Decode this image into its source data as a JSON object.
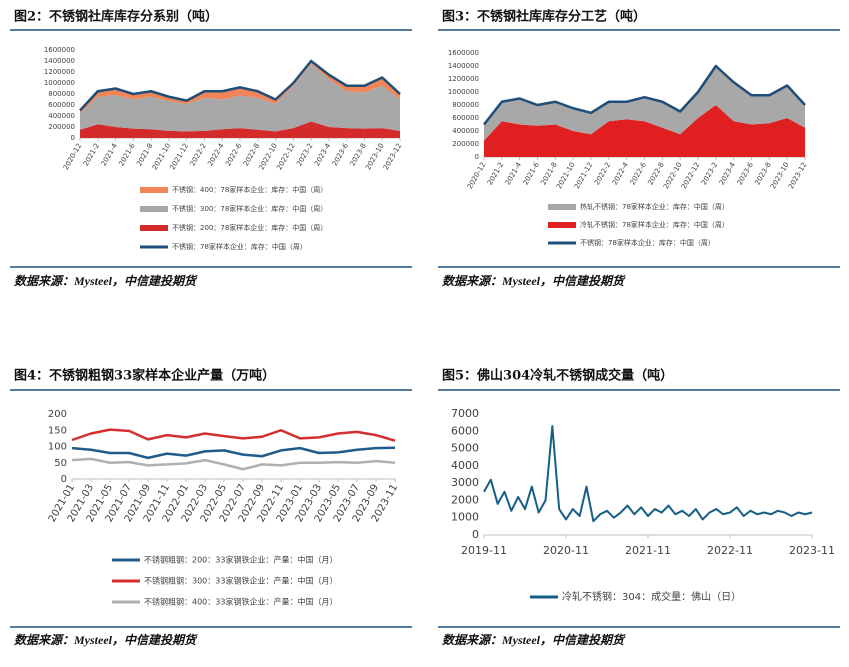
{
  "chart_data": [
    {
      "type": "area",
      "stacked": true,
      "title": "图2：不锈钢社库库存分系别（吨）",
      "source": "数据来源：Mysteel，中信建投期货",
      "categories": [
        "2020-12",
        "2021-2",
        "2021-4",
        "2021-6",
        "2021-8",
        "2021-10",
        "2021-12",
        "2022-2",
        "2022-4",
        "2022-6",
        "2022-8",
        "2022-10",
        "2022-12",
        "2023-2",
        "2023-4",
        "2023-6",
        "2023-8",
        "2023-10",
        "2023-12"
      ],
      "ylim": [
        0,
        1600000
      ],
      "yticks": [
        0,
        200000,
        400000,
        600000,
        800000,
        1000000,
        1200000,
        1400000,
        1600000
      ],
      "series": [
        {
          "name": "不锈钢：400：78家样本企业：库存：中国（周）",
          "type": "area",
          "color": "#f0855a",
          "values": [
            50000,
            100000,
            120000,
            100000,
            100000,
            80000,
            60000,
            120000,
            150000,
            150000,
            120000,
            80000,
            50000,
            50000,
            80000,
            100000,
            120000,
            150000,
            100000
          ]
        },
        {
          "name": "不锈钢：300：78家样本企业：库存：中国（周）",
          "type": "area",
          "color": "#a8a8a8",
          "values": [
            300000,
            500000,
            580000,
            530000,
            590000,
            540000,
            500000,
            600000,
            540000,
            590000,
            580000,
            500000,
            770000,
            1050000,
            870000,
            670000,
            660000,
            770000,
            570000
          ]
        },
        {
          "name": "不锈钢：200：78家样本企业：库存：中国（周）",
          "type": "area",
          "color": "#d42a2a",
          "values": [
            150000,
            250000,
            200000,
            170000,
            160000,
            130000,
            120000,
            130000,
            160000,
            180000,
            150000,
            120000,
            180000,
            300000,
            200000,
            180000,
            170000,
            180000,
            130000
          ]
        },
        {
          "name": "不锈钢：78家样本企业：库存：中国（周）",
          "type": "line",
          "color": "#1f4e79",
          "values": [
            500000,
            850000,
            900000,
            800000,
            850000,
            750000,
            680000,
            850000,
            850000,
            920000,
            850000,
            700000,
            1000000,
            1400000,
            1150000,
            950000,
            950000,
            1100000,
            800000
          ]
        }
      ]
    },
    {
      "type": "area",
      "stacked": true,
      "title": "图3：不锈钢社库库存分工艺（吨）",
      "source": "数据来源：Mysteel，中信建投期货",
      "categories": [
        "2020-12",
        "2021-2",
        "2021-4",
        "2021-6",
        "2021-8",
        "2021-10",
        "2021-12",
        "2022-2",
        "2022-4",
        "2022-6",
        "2022-8",
        "2022-10",
        "2022-12",
        "2023-2",
        "2023-4",
        "2023-6",
        "2023-8",
        "2023-10",
        "2023-12"
      ],
      "ylim": [
        0,
        1600000
      ],
      "yticks": [
        0,
        200000,
        400000,
        600000,
        800000,
        1000000,
        1200000,
        1400000,
        1600000
      ],
      "series": [
        {
          "name": "热轧不锈钢：78家样本企业：库存：中国（周）",
          "type": "area",
          "color": "#a8a8a8",
          "values": [
            250000,
            300000,
            400000,
            320000,
            350000,
            350000,
            330000,
            300000,
            270000,
            370000,
            400000,
            350000,
            400000,
            600000,
            600000,
            450000,
            430000,
            500000,
            350000
          ]
        },
        {
          "name": "冷轧不锈钢：78家样本企业：库存：中国（周）",
          "type": "area",
          "color": "#e02020",
          "values": [
            250000,
            550000,
            500000,
            480000,
            500000,
            400000,
            350000,
            550000,
            580000,
            550000,
            450000,
            350000,
            600000,
            800000,
            550000,
            500000,
            520000,
            600000,
            450000
          ]
        },
        {
          "name": "不锈钢：78家样本企业：库存：中国（周）",
          "type": "line",
          "color": "#1f4e79",
          "values": [
            500000,
            850000,
            900000,
            800000,
            850000,
            750000,
            680000,
            850000,
            850000,
            920000,
            850000,
            700000,
            1000000,
            1400000,
            1150000,
            950000,
            950000,
            1100000,
            800000
          ]
        }
      ]
    },
    {
      "type": "line",
      "title": "图4：不锈钢粗钢33家样本企业产量（万吨）",
      "source": "数据来源：Mysteel，中信建投期货",
      "categories": [
        "2021-01",
        "2021-03",
        "2021-05",
        "2021-07",
        "2021-09",
        "2021-11",
        "2022-01",
        "2022-03",
        "2022-05",
        "2022-07",
        "2022-09",
        "2022-11",
        "2023-01",
        "2023-03",
        "2023-05",
        "2023-07",
        "2023-09",
        "2023-11"
      ],
      "ylim": [
        0,
        200
      ],
      "yticks": [
        0,
        50,
        100,
        150,
        200
      ],
      "series": [
        {
          "name": "不锈钢粗钢：200：33家钢铁企业：产量：中国（月）",
          "type": "line",
          "color": "#1f5c8b",
          "values": [
            95,
            90,
            80,
            80,
            65,
            78,
            72,
            85,
            88,
            75,
            70,
            88,
            95,
            80,
            82,
            90,
            95,
            96
          ]
        },
        {
          "name": "不锈钢粗钢：300：33家钢铁企业：产量：中国（月）",
          "type": "line",
          "color": "#d32f2f",
          "values": [
            120,
            140,
            152,
            148,
            122,
            135,
            128,
            140,
            132,
            125,
            130,
            150,
            125,
            128,
            140,
            145,
            135,
            118
          ]
        },
        {
          "name": "不锈钢粗钢：400：33家钢铁企业：产量：中国（月）",
          "type": "line",
          "color": "#b0b0b0",
          "values": [
            58,
            62,
            50,
            52,
            42,
            45,
            48,
            58,
            45,
            30,
            45,
            42,
            50,
            50,
            52,
            50,
            55,
            50
          ]
        }
      ]
    },
    {
      "type": "line",
      "title": "图5：佛山304冷轧不锈钢成交量（吨）",
      "source": "数据来源：Mysteel，中信建投期货",
      "categories": [
        "2019-11",
        null,
        null,
        null,
        null,
        null,
        null,
        null,
        null,
        null,
        null,
        null,
        "2020-11",
        null,
        null,
        null,
        null,
        null,
        null,
        null,
        null,
        null,
        null,
        null,
        "2021-11",
        null,
        null,
        null,
        null,
        null,
        null,
        null,
        null,
        null,
        null,
        null,
        "2022-11",
        null,
        null,
        null,
        null,
        null,
        null,
        null,
        null,
        null,
        null,
        null,
        "2023-11"
      ],
      "ylim": [
        0,
        7000
      ],
      "yticks": [
        0,
        1000,
        2000,
        3000,
        4000,
        5000,
        6000,
        7000
      ],
      "series": [
        {
          "name": "冷轧不锈钢：304：成交量：佛山（日）",
          "type": "line",
          "color": "#155e86",
          "values": [
            2500,
            3200,
            1800,
            2500,
            1400,
            2200,
            1500,
            2800,
            1300,
            2000,
            6300,
            1500,
            900,
            1500,
            1100,
            2800,
            800,
            1200,
            1400,
            1000,
            1300,
            1700,
            1200,
            1600,
            1100,
            1500,
            1300,
            1700,
            1200,
            1400,
            1100,
            1500,
            900,
            1300,
            1500,
            1200,
            1300,
            1600,
            1100,
            1400,
            1200,
            1300,
            1200,
            1400,
            1300,
            1100,
            1300,
            1200,
            1300
          ]
        }
      ]
    }
  ]
}
